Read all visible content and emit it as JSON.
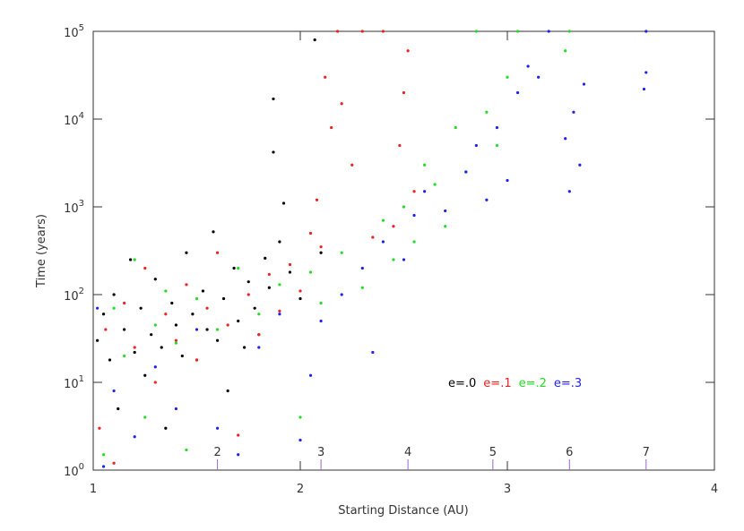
{
  "chart_data": {
    "type": "scatter",
    "x_label": "Starting Distance (AU)",
    "y_label": "Time (years)",
    "xlim": [
      1,
      4
    ],
    "xticks": [
      1,
      2,
      3,
      4
    ],
    "ylim": [
      1,
      100000
    ],
    "log_y": true,
    "yticks": [
      {
        "value": 1,
        "label": "10",
        "exponent": "0"
      },
      {
        "value": 10,
        "label": "10",
        "exponent": "1"
      },
      {
        "value": 100,
        "label": "10",
        "exponent": "2"
      },
      {
        "value": 1000,
        "label": "10",
        "exponent": "3"
      },
      {
        "value": 10000,
        "label": "10",
        "exponent": "4"
      },
      {
        "value": 100000,
        "label": "10",
        "exponent": "5"
      }
    ],
    "resonance_markers": {
      "color": "#9966cc",
      "x": [
        1.6,
        2.1,
        2.52,
        2.93,
        3.3,
        3.67
      ],
      "labels": [
        "2",
        "3",
        "4",
        "5",
        "6",
        "7"
      ]
    },
    "series": [
      {
        "name": "e=.0",
        "color": "#000000",
        "x": [
          1.02,
          1.05,
          1.08,
          1.1,
          1.12,
          1.15,
          1.18,
          1.2,
          1.23,
          1.25,
          1.28,
          1.3,
          1.33,
          1.35,
          1.38,
          1.4,
          1.43,
          1.45,
          1.48,
          1.5,
          1.53,
          1.55,
          1.58,
          1.6,
          1.63,
          1.65,
          1.68,
          1.7,
          1.73,
          1.75,
          1.78,
          1.8,
          1.83,
          1.85,
          1.87,
          1.87,
          1.9,
          1.92,
          1.95,
          2.0,
          2.07,
          2.1
        ],
        "values": [
          30,
          60,
          18,
          100,
          5,
          40,
          250,
          22,
          70,
          12,
          35,
          150,
          25,
          3,
          80,
          45,
          20,
          300,
          60,
          18,
          110,
          40,
          520,
          30,
          90,
          8,
          200,
          50,
          25,
          140,
          70,
          35,
          260,
          120,
          17000,
          4200,
          400,
          1100,
          180,
          90,
          80000,
          300
        ]
      },
      {
        "name": "e=.1",
        "color": "#ee2222",
        "x": [
          1.03,
          1.06,
          1.1,
          1.15,
          1.2,
          1.25,
          1.3,
          1.35,
          1.4,
          1.45,
          1.5,
          1.55,
          1.6,
          1.65,
          1.7,
          1.75,
          1.8,
          1.85,
          1.9,
          1.95,
          2.0,
          2.05,
          2.08,
          2.1,
          2.12,
          2.15,
          2.18,
          2.2,
          2.25,
          2.3,
          2.35,
          2.4,
          2.45,
          2.48,
          2.5,
          2.52,
          2.55
        ],
        "values": [
          3,
          40,
          1.2,
          80,
          25,
          200,
          10,
          60,
          30,
          130,
          18,
          70,
          300,
          45,
          2.5,
          100,
          35,
          170,
          65,
          220,
          110,
          500,
          1200,
          350,
          30000,
          8000,
          100000,
          15000,
          3000,
          100000,
          450,
          100000,
          600,
          5000,
          20000,
          60000,
          1500
        ]
      },
      {
        "name": "e=.2",
        "color": "#22dd22",
        "x": [
          1.05,
          1.1,
          1.15,
          1.2,
          1.25,
          1.3,
          1.35,
          1.4,
          1.45,
          1.5,
          1.6,
          1.7,
          1.8,
          1.9,
          2.0,
          2.05,
          2.1,
          2.2,
          2.3,
          2.4,
          2.45,
          2.5,
          2.55,
          2.6,
          2.65,
          2.7,
          2.75,
          2.8,
          2.85,
          2.9,
          2.95,
          3.0,
          3.05,
          3.28,
          3.3
        ],
        "values": [
          1.5,
          70,
          20,
          250,
          4,
          45,
          110,
          28,
          1.7,
          90,
          40,
          200,
          60,
          130,
          4,
          180,
          80,
          300,
          120,
          700,
          250,
          1000,
          400,
          3000,
          1800,
          600,
          8000,
          2500,
          100000,
          12000,
          5000,
          30000,
          100000,
          60000,
          100000
        ]
      },
      {
        "name": "e=.3",
        "color": "#2222ee",
        "x": [
          1.02,
          1.05,
          1.1,
          1.2,
          1.3,
          1.4,
          1.5,
          1.6,
          1.7,
          1.8,
          1.9,
          2.0,
          2.05,
          2.1,
          2.2,
          2.3,
          2.35,
          2.4,
          2.5,
          2.55,
          2.6,
          2.7,
          2.8,
          2.85,
          2.9,
          2.95,
          3.0,
          3.05,
          3.1,
          3.15,
          3.2,
          3.28,
          3.3,
          3.32,
          3.35,
          3.37,
          3.66,
          3.67,
          3.67
        ],
        "values": [
          70,
          1.1,
          8,
          2.4,
          15,
          5,
          40,
          3,
          1.5,
          25,
          60,
          2.2,
          12,
          50,
          100,
          200,
          22,
          400,
          250,
          800,
          1500,
          900,
          2500,
          5000,
          1200,
          8000,
          2000,
          20000,
          40000,
          30000,
          100000,
          6000,
          1500,
          12000,
          3000,
          25000,
          22000,
          34000,
          100000
        ]
      }
    ]
  }
}
